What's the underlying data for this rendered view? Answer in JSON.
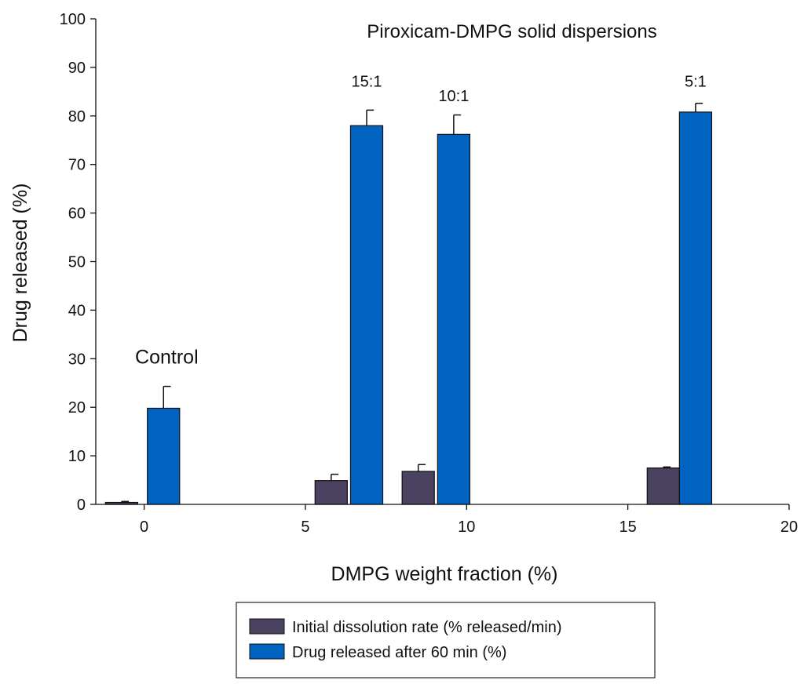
{
  "chart_data": {
    "type": "bar",
    "title": "Piroxicam-DMPG solid dispersions",
    "xlabel": "DMPG weight fraction (%)",
    "ylabel": "Drug released (%)",
    "xlim": [
      -1.5,
      20
    ],
    "ylim": [
      0,
      100
    ],
    "x_ticks": [
      0,
      5,
      10,
      15,
      20
    ],
    "y_ticks": [
      0,
      10,
      20,
      30,
      40,
      50,
      60,
      70,
      80,
      90,
      100
    ],
    "bar_width": 1.0,
    "series": [
      {
        "name": "Initial dissolution rate (% released/min)",
        "color": "#4a4260",
        "points": [
          {
            "x": -0.7,
            "value": 0.4,
            "error": 0.2
          },
          {
            "x": 5.8,
            "value": 4.9,
            "error": 1.3
          },
          {
            "x": 8.5,
            "value": 6.8,
            "error": 1.4
          },
          {
            "x": 16.1,
            "value": 7.5,
            "error": 0.2
          }
        ]
      },
      {
        "name": "Drug released after 60 min (%)",
        "color": "#0063c0",
        "points": [
          {
            "x": 0.6,
            "value": 19.8,
            "error": 4.5
          },
          {
            "x": 6.9,
            "value": 78.0,
            "error": 3.2
          },
          {
            "x": 9.6,
            "value": 76.2,
            "error": 4.0
          },
          {
            "x": 17.1,
            "value": 80.8,
            "error": 1.8
          }
        ]
      }
    ],
    "annotations": [
      {
        "text": "15:1",
        "x": 6.9,
        "y": 86
      },
      {
        "text": "10:1",
        "x": 9.6,
        "y": 83
      },
      {
        "text": "5:1",
        "x": 17.1,
        "y": 86
      }
    ],
    "control_label": {
      "text": "Control",
      "x": 0.7,
      "y": 29
    },
    "legend_position": "bottom-center"
  }
}
